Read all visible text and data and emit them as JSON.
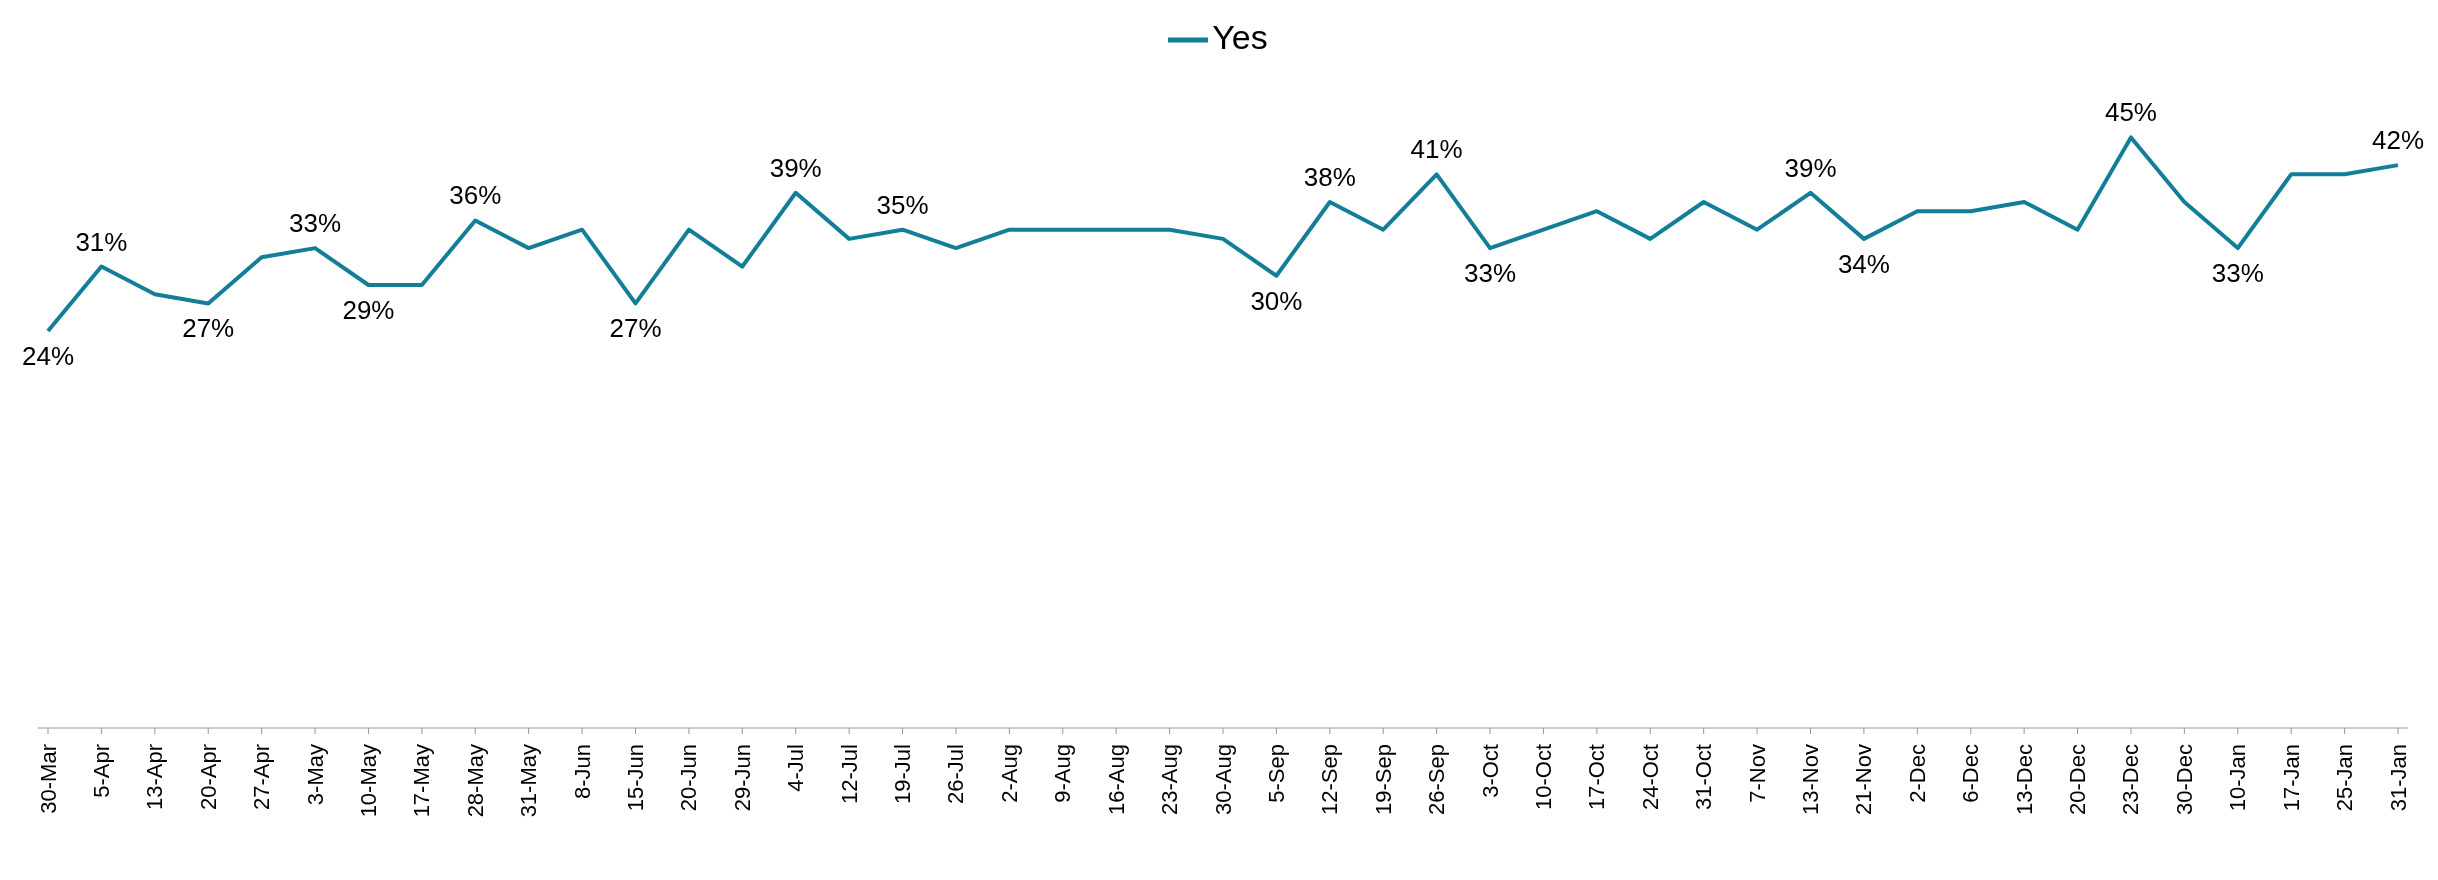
{
  "chart_data": {
    "type": "line",
    "categories": [
      "30-Mar",
      "5-Apr",
      "13-Apr",
      "20-Apr",
      "27-Apr",
      "3-May",
      "10-May",
      "17-May",
      "28-May",
      "31-May",
      "8-Jun",
      "15-Jun",
      "20-Jun",
      "29-Jun",
      "4-Jul",
      "12-Jul",
      "19-Jul",
      "26-Jul",
      "2-Aug",
      "9-Aug",
      "16-Aug",
      "23-Aug",
      "30-Aug",
      "5-Sep",
      "12-Sep",
      "19-Sep",
      "26-Sep",
      "3-Oct",
      "10-Oct",
      "17-Oct",
      "24-Oct",
      "31-Oct",
      "7-Nov",
      "13-Nov",
      "21-Nov",
      "2-Dec",
      "6-Dec",
      "13-Dec",
      "20-Dec",
      "23-Dec",
      "30-Dec",
      "10-Jan",
      "17-Jan",
      "25-Jan",
      "31-Jan"
    ],
    "series": [
      {
        "name": "Yes",
        "color": "#137e98",
        "values": [
          24,
          31,
          28,
          27,
          32,
          33,
          29,
          29,
          36,
          33,
          35,
          27,
          35,
          31,
          39,
          34,
          35,
          33,
          35,
          35,
          35,
          35,
          34,
          30,
          38,
          35,
          41,
          33,
          35,
          37,
          34,
          38,
          35,
          39,
          34,
          37,
          37,
          38,
          35,
          45,
          38,
          33,
          41,
          41,
          42
        ],
        "value_labels": [
          "24%",
          "31%",
          null,
          "27%",
          null,
          "33%",
          "29%",
          null,
          "36%",
          null,
          null,
          "27%",
          null,
          null,
          "39%",
          null,
          "35%",
          null,
          null,
          null,
          null,
          null,
          null,
          "30%",
          "38%",
          null,
          "41%",
          "33%",
          null,
          null,
          null,
          null,
          null,
          "39%",
          "34%",
          null,
          null,
          null,
          null,
          "45%",
          null,
          "33%",
          null,
          null,
          "42%"
        ]
      }
    ],
    "tick_labels": "x",
    "grid": false,
    "legend": "top",
    "marker": "none",
    "line_style": "solid"
  }
}
